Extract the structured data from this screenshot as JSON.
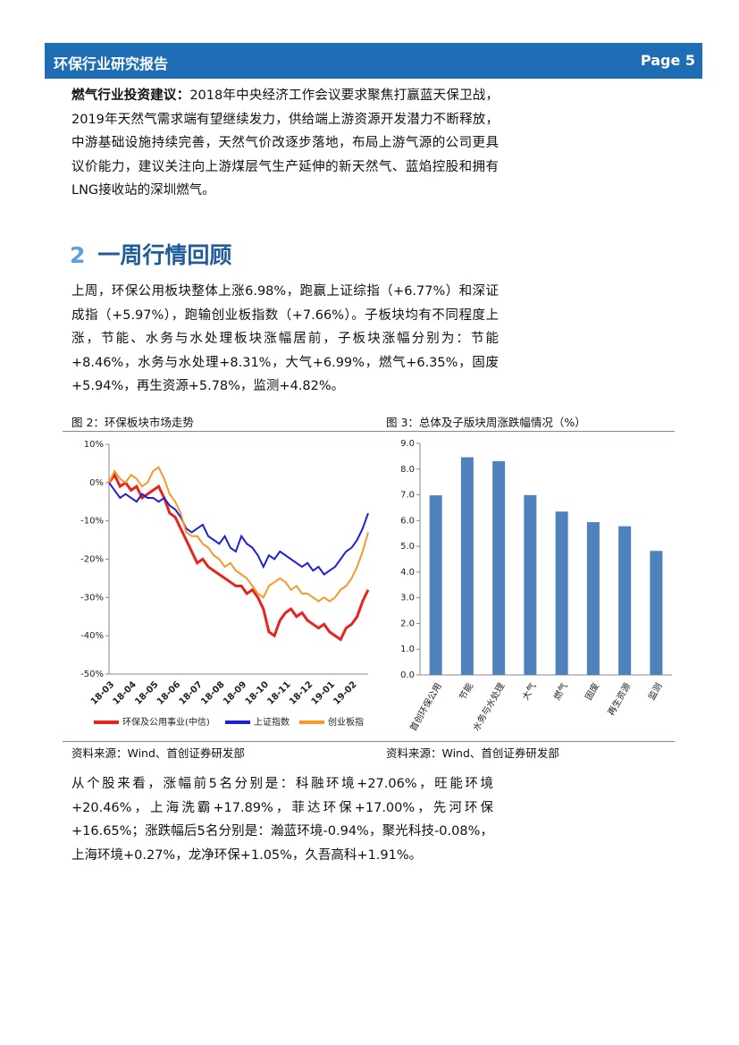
{
  "header": {
    "title": "环保行业研究报告",
    "page": "Page 5"
  },
  "para1": {
    "lead": "燃气行业投资建议：",
    "text": "2018年中央经济工作会议要求聚焦打赢蓝天保卫战，2019年天然气需求端有望继续发力，供给端上游资源开发潜力不断释放，中游基础设施持续完善，天然气价改逐步落地，布局上游气源的公司更具议价能力，建议关注向上游煤层气生产延伸的新天然气、蓝焰控股和拥有LNG接收站的深圳燃气。"
  },
  "section": {
    "number": "2",
    "title": "一周行情回顾"
  },
  "para2": "上周，环保公用板块整体上涨6.98%，跑赢上证综指（+6.77%）和深证成指（+5.97%），跑输创业板指数（+7.66%）。子板块均有不同程度上涨，节能、水务与水处理板块涨幅居前，子板块涨幅分别为：节能+8.46%，水务与水处理+8.31%，大气+6.99%，燃气+6.35%，固废+5.94%，再生资源+5.78%，监测+4.82%。",
  "chart_data": [
    {
      "type": "line",
      "title": "图 2：环保板块市场走势",
      "source": "资料来源：Wind、首创证券研发部",
      "categories": [
        "18-03",
        null,
        null,
        null,
        "18-04",
        null,
        null,
        null,
        "18-05",
        null,
        null,
        null,
        "18-06",
        null,
        null,
        null,
        "18-07",
        null,
        null,
        null,
        "18-08",
        null,
        null,
        null,
        "18-09",
        null,
        null,
        null,
        "18-10",
        null,
        null,
        null,
        "18-11",
        null,
        null,
        null,
        "18-12",
        null,
        null,
        null,
        "19-01",
        null,
        null,
        null,
        "19-02",
        null,
        null,
        null
      ],
      "series": [
        {
          "name": "环保及公用事业(中信)",
          "color": "#e8231a",
          "values": [
            0,
            2,
            -1,
            0,
            -2,
            -1,
            -4,
            -3,
            -2,
            -1,
            -4,
            -8,
            -9,
            -12,
            -15,
            -18,
            -21,
            -20,
            -22,
            -23,
            -24,
            -25,
            -26,
            -27,
            -27,
            -29,
            -28,
            -30,
            -33,
            -39,
            -40,
            -36,
            -34,
            -33,
            -35,
            -34,
            -36,
            -37,
            -38,
            -37,
            -39,
            -40,
            -41,
            -38,
            -37,
            -35,
            -31,
            -28
          ]
        },
        {
          "name": "上证指数",
          "color": "#1f1fd8",
          "values": [
            0,
            -2,
            -4,
            -3,
            -4,
            -5,
            -3,
            -4,
            -4,
            -5,
            -4,
            -6,
            -7,
            -9,
            -12,
            -13,
            -12,
            -11,
            -14,
            -15,
            -16,
            -14,
            -17,
            -18,
            -14,
            -16,
            -17,
            -19,
            -22,
            -19,
            -20,
            -18,
            -19,
            -20,
            -21,
            -22,
            -21,
            -23,
            -22,
            -24,
            -23,
            -22,
            -20,
            -18,
            -17,
            -15,
            -12,
            -8
          ]
        },
        {
          "name": "创业板指",
          "color": "#f39a2b",
          "values": [
            0,
            3,
            1,
            0,
            2,
            1,
            -1,
            0,
            3,
            4,
            1,
            -3,
            -5,
            -8,
            -13,
            -14,
            -14,
            -16,
            -17,
            -19,
            -20,
            -22,
            -21,
            -23,
            -24,
            -25,
            -27,
            -29,
            -30,
            -27,
            -26,
            -25,
            -26,
            -28,
            -27,
            -29,
            -29,
            -30,
            -31,
            -30,
            -31,
            -30,
            -28,
            -27,
            -25,
            -22,
            -18,
            -13
          ]
        }
      ],
      "ylim": [
        -50,
        10
      ],
      "yticks": [
        {
          "value": 10,
          "label": "10%"
        },
        {
          "value": 0,
          "label": "0%"
        },
        {
          "value": -10,
          "label": "-10%"
        },
        {
          "value": -20,
          "label": "-20%"
        },
        {
          "value": -30,
          "label": "-30%"
        },
        {
          "value": -40,
          "label": "-40%"
        },
        {
          "value": -50,
          "label": "-50%"
        }
      ]
    },
    {
      "type": "bar",
      "title": "图 3：总体及子版块周涨跌幅情况（%）",
      "source": "资料来源：Wind、首创证券研发部",
      "categories": [
        "首创环保公用",
        "节能",
        "水务与水处理",
        "大气",
        "燃气",
        "固废",
        "再生资源",
        "监测"
      ],
      "values": [
        6.98,
        8.46,
        8.31,
        6.99,
        6.35,
        5.94,
        5.78,
        4.82
      ],
      "color": "#4f81bd",
      "ylim": [
        0,
        9
      ],
      "yticks": [
        {
          "value": 0,
          "label": "0.0"
        },
        {
          "value": 1,
          "label": "1.0"
        },
        {
          "value": 2,
          "label": "2.0"
        },
        {
          "value": 3,
          "label": "3.0"
        },
        {
          "value": 4,
          "label": "4.0"
        },
        {
          "value": 5,
          "label": "5.0"
        },
        {
          "value": 6,
          "label": "6.0"
        },
        {
          "value": 7,
          "label": "7.0"
        },
        {
          "value": 8,
          "label": "8.0"
        },
        {
          "value": 9,
          "label": "9.0"
        }
      ]
    }
  ],
  "para3": "从个股来看，涨幅前5名分别是：科融环境+27.06%，旺能环境+20.46%，上海洗霸+17.89%，菲达环保+17.00%，先河环保+16.65%；涨跌幅后5名分别是：瀚蓝环境-0.94%，聚光科技-0.08%，上海环境+0.27%，龙净环保+1.05%，久吾高科+1.91%。"
}
